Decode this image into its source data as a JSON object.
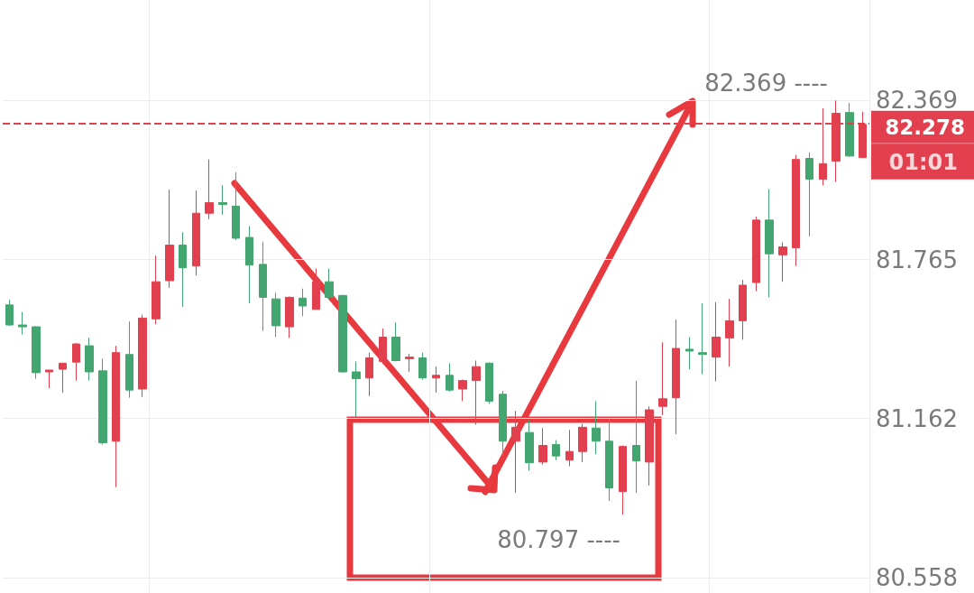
{
  "chart_data": {
    "type": "candlestick",
    "categories": [
      null,
      null,
      null,
      null,
      null,
      null,
      null,
      null,
      null,
      null,
      null,
      null,
      null,
      null,
      null,
      null,
      null,
      null,
      null,
      null,
      null,
      null,
      null,
      null,
      null,
      null,
      null,
      null,
      null,
      null,
      null,
      null,
      null,
      null,
      null,
      null,
      null,
      null,
      null,
      null,
      null,
      null,
      null,
      null,
      null,
      null,
      null,
      null,
      null,
      null,
      null,
      null,
      null,
      null,
      null,
      null,
      null,
      null,
      null,
      null,
      null,
      null,
      null,
      null,
      null
    ],
    "ohlc": [
      [
        81.593,
        81.612,
        81.514,
        81.517
      ],
      [
        81.517,
        81.566,
        81.481,
        81.51
      ],
      [
        81.51,
        81.512,
        81.313,
        81.336
      ],
      [
        81.339,
        81.346,
        81.277,
        81.346
      ],
      [
        81.349,
        81.372,
        81.26,
        81.372
      ],
      [
        81.376,
        81.448,
        81.306,
        81.445
      ],
      [
        81.438,
        81.468,
        81.306,
        81.339
      ],
      [
        81.343,
        81.389,
        81.063,
        81.07
      ],
      [
        81.076,
        81.438,
        80.902,
        81.412
      ],
      [
        81.405,
        81.53,
        81.241,
        81.27
      ],
      [
        81.274,
        81.556,
        81.244,
        81.543
      ],
      [
        81.54,
        81.78,
        81.52,
        81.681
      ],
      [
        81.685,
        82.03,
        81.658,
        81.82
      ],
      [
        81.82,
        81.869,
        81.586,
        81.734
      ],
      [
        81.741,
        82.027,
        81.705,
        81.941
      ],
      [
        81.941,
        82.145,
        81.918,
        81.981
      ],
      [
        81.981,
        82.047,
        81.935,
        81.974
      ],
      [
        81.968,
        82.096,
        81.839,
        81.846
      ],
      [
        81.849,
        81.892,
        81.599,
        81.744
      ],
      [
        81.747,
        81.833,
        81.494,
        81.622
      ],
      [
        81.616,
        81.639,
        81.471,
        81.514
      ],
      [
        81.51,
        81.625,
        81.468,
        81.622
      ],
      [
        81.619,
        81.655,
        81.55,
        81.589
      ],
      [
        81.576,
        81.731,
        81.576,
        81.681
      ],
      [
        81.681,
        81.731,
        81.616,
        81.622
      ],
      [
        81.629,
        81.632,
        81.336,
        81.339
      ],
      [
        81.339,
        81.379,
        81.168,
        81.313
      ],
      [
        81.316,
        81.412,
        81.247,
        81.392
      ],
      [
        81.379,
        81.504,
        81.369,
        81.471
      ],
      [
        81.471,
        81.527,
        81.379,
        81.382
      ],
      [
        81.389,
        81.408,
        81.339,
        81.395
      ],
      [
        81.392,
        81.412,
        81.31,
        81.316
      ],
      [
        81.316,
        81.359,
        81.26,
        81.326
      ],
      [
        81.326,
        81.372,
        81.264,
        81.27
      ],
      [
        81.274,
        81.31,
        81.228,
        81.306
      ],
      [
        81.306,
        81.382,
        81.139,
        81.359
      ],
      [
        81.372,
        81.375,
        81.218,
        81.228
      ],
      [
        81.254,
        81.267,
        81.02,
        81.076
      ],
      [
        81.076,
        81.191,
        80.879,
        81.129
      ],
      [
        81.109,
        81.158,
        80.964,
        80.994
      ],
      [
        80.997,
        81.126,
        80.987,
        81.06
      ],
      [
        81.063,
        81.08,
        81.004,
        81.02
      ],
      [
        81.004,
        81.119,
        80.981,
        81.037
      ],
      [
        81.037,
        81.142,
        80.997,
        81.129
      ],
      [
        81.126,
        81.228,
        81.027,
        81.076
      ],
      [
        81.076,
        81.162,
        80.849,
        80.899
      ],
      [
        80.885,
        81.06,
        80.797,
        81.056
      ],
      [
        81.06,
        81.306,
        80.879,
        81.001
      ],
      [
        80.997,
        81.208,
        80.908,
        81.195
      ],
      [
        81.208,
        81.451,
        81.175,
        81.237
      ],
      [
        81.241,
        81.537,
        81.103,
        81.428
      ],
      [
        81.425,
        81.471,
        81.349,
        81.418
      ],
      [
        81.412,
        81.599,
        81.33,
        81.405
      ],
      [
        81.395,
        81.603,
        81.303,
        81.471
      ],
      [
        81.468,
        81.616,
        81.359,
        81.533
      ],
      [
        81.533,
        81.688,
        81.461,
        81.668
      ],
      [
        81.678,
        81.928,
        81.645,
        81.915
      ],
      [
        81.915,
        82.033,
        81.622,
        81.787
      ],
      [
        81.783,
        81.83,
        81.681,
        81.813
      ],
      [
        81.81,
        82.162,
        81.741,
        82.145
      ],
      [
        82.149,
        82.172,
        81.853,
        82.07
      ],
      [
        82.07,
        82.339,
        82.047,
        82.129
      ],
      [
        82.139,
        82.369,
        82.06,
        82.32
      ],
      [
        82.323,
        82.359,
        82.155,
        82.158
      ],
      [
        82.152,
        82.326,
        82.152,
        82.278
      ]
    ],
    "colors": [
      "#43a56f",
      "#43a56f",
      "#43a56f",
      "#e2404f",
      "#e2404f",
      "#e2404f",
      "#43a56f",
      "#43a56f",
      "#e2404f",
      "#43a56f",
      "#e2404f",
      "#e2404f",
      "#e2404f",
      "#43a56f",
      "#e2404f",
      "#e2404f",
      "#43a56f",
      "#43a56f",
      "#43a56f",
      "#43a56f",
      "#43a56f",
      "#e2404f",
      "#43a56f",
      "#e2404f",
      "#43a56f",
      "#43a56f",
      "#43a56f",
      "#e2404f",
      "#e2404f",
      "#43a56f",
      "#e2404f",
      "#43a56f",
      "#e2404f",
      "#43a56f",
      "#e2404f",
      "#e2404f",
      "#43a56f",
      "#43a56f",
      "#e2404f",
      "#43a56f",
      "#e2404f",
      "#43a56f",
      "#e2404f",
      "#e2404f",
      "#43a56f",
      "#43a56f",
      "#e2404f",
      "#43a56f",
      "#e2404f",
      "#e2404f",
      "#e2404f",
      "#43a56f",
      "#43a56f",
      "#e2404f",
      "#e2404f",
      "#e2404f",
      "#e2404f",
      "#43a56f",
      "#e2404f",
      "#e2404f",
      "#43a56f",
      "#e2404f",
      "#e2404f",
      "#43a56f",
      "#e2404f"
    ],
    "ylim": [
      80.5,
      82.75
    ],
    "yticks": [
      80.558,
      81.162,
      81.765,
      82.369
    ],
    "grid": true,
    "tick_labels": "y",
    "ref_lines": [
      {
        "axis": "y",
        "value": 82.278,
        "label": "82.278",
        "color": "#e2404f",
        "line_style": "dashed"
      }
    ],
    "annotations": [
      "82.369 ----",
      "80.797 ----",
      "01:01"
    ]
  }
}
